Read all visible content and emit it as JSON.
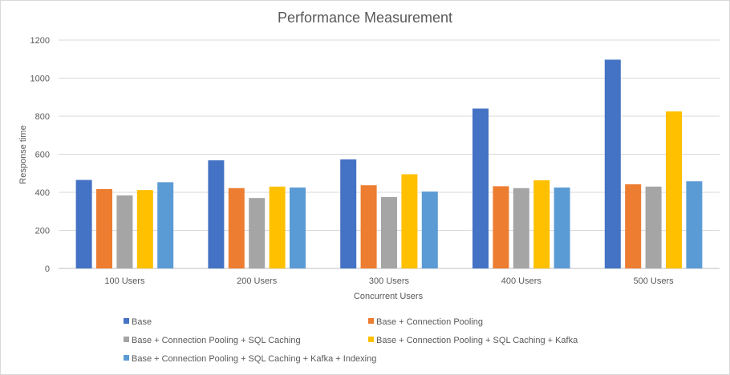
{
  "chart_data": {
    "type": "bar",
    "title": "Performance Measurement",
    "xlabel": "Concurrent Users",
    "ylabel": "Response time",
    "ylim": [
      0,
      1200
    ],
    "yticks": [
      "0",
      "200",
      "400",
      "600",
      "800",
      "1000",
      "1200"
    ],
    "categories": [
      "100 Users",
      "200 Users",
      "300 Users",
      "400 Users",
      "500 Users"
    ],
    "grid": true,
    "legend_position": "bottom",
    "series": [
      {
        "name": "Base",
        "color": "#4472C4",
        "values": [
          465,
          568,
          573,
          840,
          1097
        ]
      },
      {
        "name": "Base + Connection Pooling",
        "color": "#ED7D31",
        "values": [
          417,
          422,
          437,
          432,
          442
        ]
      },
      {
        "name": "Base + Connection Pooling + SQL Caching",
        "color": "#A5A5A5",
        "values": [
          384,
          370,
          375,
          422,
          430
        ]
      },
      {
        "name": "Base + Connection Pooling + SQL Caching + Kafka",
        "color": "#FFC000",
        "values": [
          412,
          430,
          495,
          463,
          825
        ]
      },
      {
        "name": "Base + Connection Pooling + SQL Caching + Kafka + Indexing",
        "color": "#5B9BD5",
        "values": [
          453,
          425,
          404,
          425,
          458
        ]
      }
    ]
  }
}
